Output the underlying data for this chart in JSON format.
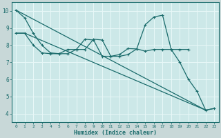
{
  "xlabel": "Humidex (Indice chaleur)",
  "bg_color": "#b8e8e8",
  "grid_color": "#d8f0f0",
  "line_color": "#1a6b6b",
  "plot_bg": "#cce8e8",
  "xlim": [
    -0.5,
    23.5
  ],
  "ylim": [
    3.5,
    10.5
  ],
  "xticks": [
    0,
    1,
    2,
    3,
    4,
    5,
    6,
    7,
    8,
    9,
    10,
    11,
    12,
    13,
    14,
    15,
    16,
    17,
    18,
    19,
    20,
    21,
    22,
    23
  ],
  "yticks": [
    4,
    5,
    6,
    7,
    8,
    9,
    10
  ],
  "series": [
    {
      "x": [
        0,
        22
      ],
      "y": [
        10.05,
        4.2
      ],
      "marker": false
    },
    {
      "x": [
        0,
        1,
        2,
        3,
        4,
        5,
        6,
        7,
        8,
        9,
        10,
        11,
        12,
        13,
        14,
        15,
        16,
        17,
        18,
        19,
        20
      ],
      "y": [
        8.7,
        8.7,
        8.0,
        7.55,
        7.5,
        7.5,
        7.75,
        7.75,
        8.35,
        8.3,
        7.35,
        7.35,
        7.45,
        7.8,
        7.78,
        7.65,
        7.75,
        7.75,
        7.75,
        7.75,
        7.75
      ],
      "marker": true
    },
    {
      "x": [
        0,
        1,
        2,
        3,
        4,
        5,
        6,
        7,
        8,
        9,
        10,
        11,
        12,
        13,
        14,
        15,
        16,
        17,
        18,
        19,
        20,
        21,
        22,
        23
      ],
      "y": [
        10.05,
        9.6,
        8.7,
        8.0,
        7.55,
        7.5,
        7.5,
        7.75,
        7.75,
        8.35,
        8.3,
        7.35,
        7.35,
        7.45,
        7.78,
        9.2,
        9.65,
        9.75,
        7.75,
        7.0,
        6.0,
        5.3,
        4.2,
        4.3
      ],
      "marker": true
    },
    {
      "x": [
        0,
        1,
        22,
        23
      ],
      "y": [
        8.7,
        8.7,
        4.2,
        4.3
      ],
      "marker": false
    }
  ]
}
